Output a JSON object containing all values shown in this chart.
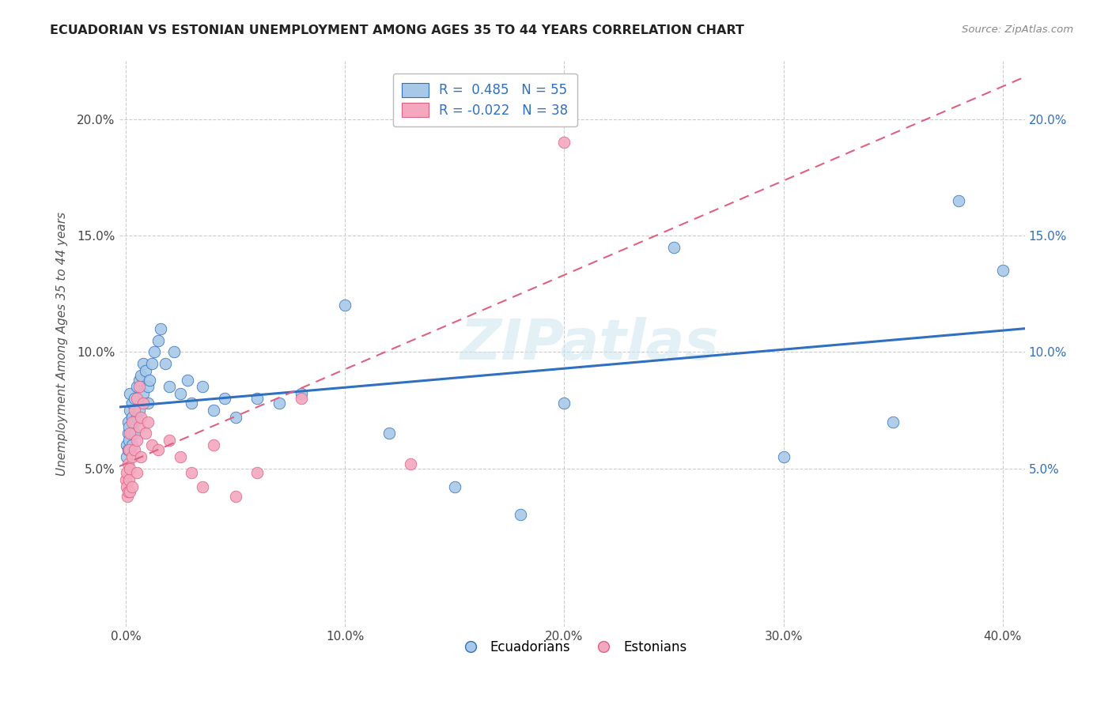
{
  "title": "ECUADORIAN VS ESTONIAN UNEMPLOYMENT AMONG AGES 35 TO 44 YEARS CORRELATION CHART",
  "source": "Source: ZipAtlas.com",
  "ylabel": "Unemployment Among Ages 35 to 44 years",
  "xlabel_ticks": [
    "0.0%",
    "10.0%",
    "20.0%",
    "30.0%",
    "40.0%"
  ],
  "xlabel_vals": [
    0.0,
    0.1,
    0.2,
    0.3,
    0.4
  ],
  "ylabel_ticks": [
    "5.0%",
    "10.0%",
    "15.0%",
    "20.0%"
  ],
  "ylabel_vals": [
    0.05,
    0.1,
    0.15,
    0.2
  ],
  "xlim": [
    -0.003,
    0.41
  ],
  "ylim": [
    -0.018,
    0.225
  ],
  "blue_R": 0.485,
  "blue_N": 55,
  "pink_R": -0.022,
  "pink_N": 38,
  "blue_color": "#a8c8e8",
  "pink_color": "#f4a8c0",
  "blue_line_color": "#3070c0",
  "pink_line_color": "#e06080",
  "watermark": "ZIPatlas",
  "background_color": "#ffffff",
  "ecuadorians_x": [
    0.0005,
    0.0005,
    0.001,
    0.001,
    0.001,
    0.0015,
    0.0015,
    0.002,
    0.002,
    0.002,
    0.0025,
    0.003,
    0.003,
    0.003,
    0.004,
    0.004,
    0.004,
    0.005,
    0.005,
    0.006,
    0.006,
    0.007,
    0.008,
    0.008,
    0.009,
    0.01,
    0.01,
    0.011,
    0.012,
    0.013,
    0.015,
    0.016,
    0.018,
    0.02,
    0.022,
    0.025,
    0.028,
    0.03,
    0.035,
    0.04,
    0.045,
    0.05,
    0.06,
    0.07,
    0.08,
    0.1,
    0.12,
    0.15,
    0.18,
    0.2,
    0.25,
    0.3,
    0.35,
    0.38,
    0.4
  ],
  "ecuadorians_y": [
    0.06,
    0.055,
    0.065,
    0.058,
    0.07,
    0.062,
    0.068,
    0.075,
    0.058,
    0.082,
    0.065,
    0.072,
    0.06,
    0.078,
    0.08,
    0.065,
    0.07,
    0.085,
    0.072,
    0.088,
    0.075,
    0.09,
    0.095,
    0.082,
    0.092,
    0.078,
    0.085,
    0.088,
    0.095,
    0.1,
    0.105,
    0.11,
    0.095,
    0.085,
    0.1,
    0.082,
    0.088,
    0.078,
    0.085,
    0.075,
    0.08,
    0.072,
    0.08,
    0.078,
    0.082,
    0.12,
    0.065,
    0.042,
    0.03,
    0.078,
    0.145,
    0.055,
    0.07,
    0.165,
    0.135
  ],
  "estonians_x": [
    0.0002,
    0.0003,
    0.0005,
    0.0008,
    0.001,
    0.001,
    0.0015,
    0.0015,
    0.002,
    0.002,
    0.002,
    0.003,
    0.003,
    0.003,
    0.004,
    0.004,
    0.005,
    0.005,
    0.005,
    0.006,
    0.006,
    0.007,
    0.007,
    0.008,
    0.009,
    0.01,
    0.012,
    0.015,
    0.02,
    0.025,
    0.03,
    0.035,
    0.04,
    0.05,
    0.06,
    0.08,
    0.13,
    0.2
  ],
  "estonians_y": [
    0.045,
    0.042,
    0.048,
    0.038,
    0.052,
    0.04,
    0.058,
    0.045,
    0.065,
    0.05,
    0.04,
    0.07,
    0.055,
    0.042,
    0.075,
    0.058,
    0.08,
    0.062,
    0.048,
    0.085,
    0.068,
    0.072,
    0.055,
    0.078,
    0.065,
    0.07,
    0.06,
    0.058,
    0.062,
    0.055,
    0.048,
    0.042,
    0.06,
    0.038,
    0.048,
    0.08,
    0.052,
    0.19
  ],
  "grid_color": "#cccccc",
  "title_color": "#222222",
  "source_color": "#888888",
  "tick_color": "#444444",
  "right_tick_color": "#3070c0"
}
